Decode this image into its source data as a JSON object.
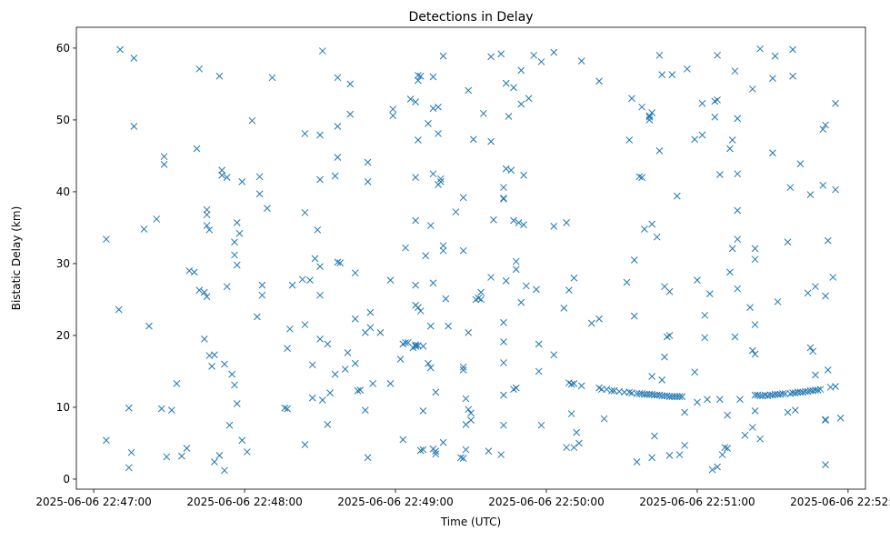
{
  "chart_data": {
    "type": "scatter",
    "title": "Detections in Delay",
    "xlabel": "Time (UTC)",
    "ylabel": "Bistatic Delay (km)",
    "marker": "x",
    "color": "#1f77b4",
    "x_unit": "seconds since 2025-06-06 22:47:00",
    "xlim": [
      -6.9,
      306.9
    ],
    "ylim": [
      -1.4,
      62.9
    ],
    "x_ticks": [
      {
        "value": 0,
        "label": "2025-06-06 22:47:00"
      },
      {
        "value": 60,
        "label": "2025-06-06 22:48:00"
      },
      {
        "value": 120,
        "label": "2025-06-06 22:49:00"
      },
      {
        "value": 180,
        "label": "2025-06-06 22:50:00"
      },
      {
        "value": 240,
        "label": "2025-06-06 22:51:00"
      },
      {
        "value": 300,
        "label": "2025-06-06 22:52:00"
      }
    ],
    "y_ticks": [
      {
        "value": 0,
        "label": "0"
      },
      {
        "value": 10,
        "label": "10"
      },
      {
        "value": 20,
        "label": "20"
      },
      {
        "value": 30,
        "label": "30"
      },
      {
        "value": 40,
        "label": "40"
      },
      {
        "value": 50,
        "label": "50"
      },
      {
        "value": 60,
        "label": "60"
      }
    ],
    "points": [
      [
        5,
        33.4
      ],
      [
        5,
        5.4
      ],
      [
        10,
        23.6
      ],
      [
        10.5,
        59.8
      ],
      [
        14,
        9.9
      ],
      [
        14,
        1.6
      ],
      [
        15,
        3.7
      ],
      [
        16,
        58.6
      ],
      [
        16,
        49.1
      ],
      [
        20,
        34.8
      ],
      [
        22,
        21.3
      ],
      [
        25,
        36.2
      ],
      [
        27,
        9.8
      ],
      [
        28,
        44.9
      ],
      [
        28,
        43.8
      ],
      [
        29,
        3.1
      ],
      [
        31,
        9.6
      ],
      [
        33,
        13.3
      ],
      [
        35,
        3.2
      ],
      [
        37,
        4.3
      ],
      [
        38,
        29.0
      ],
      [
        40,
        28.8
      ],
      [
        41,
        46.0
      ],
      [
        42,
        57.1
      ],
      [
        42,
        26.3
      ],
      [
        44,
        19.5
      ],
      [
        44,
        26.0
      ],
      [
        45,
        35.3
      ],
      [
        45,
        36.8
      ],
      [
        45,
        37.5
      ],
      [
        45,
        25.4
      ],
      [
        46,
        17.2
      ],
      [
        46,
        34.7
      ],
      [
        47,
        15.7
      ],
      [
        48,
        17.3
      ],
      [
        48,
        2.4
      ],
      [
        50,
        56.1
      ],
      [
        50,
        3.3
      ],
      [
        51,
        43.0
      ],
      [
        51,
        42.3
      ],
      [
        52,
        16.0
      ],
      [
        52,
        1.2
      ],
      [
        53,
        26.8
      ],
      [
        53,
        42.0
      ],
      [
        54,
        7.5
      ],
      [
        55,
        14.6
      ],
      [
        56,
        33.0
      ],
      [
        56,
        31.2
      ],
      [
        56,
        13.1
      ],
      [
        57,
        29.8
      ],
      [
        57,
        35.7
      ],
      [
        57,
        10.5
      ],
      [
        58,
        34.2
      ],
      [
        59,
        41.4
      ],
      [
        59,
        5.4
      ],
      [
        61,
        3.8
      ],
      [
        63,
        49.9
      ],
      [
        65,
        22.6
      ],
      [
        66,
        42.1
      ],
      [
        66,
        39.7
      ],
      [
        67,
        27.0
      ],
      [
        67,
        25.6
      ],
      [
        69,
        37.7
      ],
      [
        71,
        55.9
      ],
      [
        76,
        9.9
      ],
      [
        77,
        9.8
      ],
      [
        77,
        18.2
      ],
      [
        78,
        20.9
      ],
      [
        79,
        27.0
      ],
      [
        83,
        27.8
      ],
      [
        84,
        48.1
      ],
      [
        84,
        37.1
      ],
      [
        84,
        21.5
      ],
      [
        84,
        4.8
      ],
      [
        86,
        27.7
      ],
      [
        87,
        15.9
      ],
      [
        87,
        11.3
      ],
      [
        88,
        30.7
      ],
      [
        89,
        34.7
      ],
      [
        90,
        47.9
      ],
      [
        90,
        41.7
      ],
      [
        90,
        29.6
      ],
      [
        90,
        25.6
      ],
      [
        90,
        19.5
      ],
      [
        91,
        11.0
      ],
      [
        91,
        59.6
      ],
      [
        93,
        7.6
      ],
      [
        93,
        18.8
      ],
      [
        94,
        12.0
      ],
      [
        96,
        42.2
      ],
      [
        96,
        14.6
      ],
      [
        97,
        55.9
      ],
      [
        97,
        44.8
      ],
      [
        97,
        49.1
      ],
      [
        97,
        30.2
      ],
      [
        98,
        30.1
      ],
      [
        100,
        15.3
      ],
      [
        101,
        17.6
      ],
      [
        102,
        55.0
      ],
      [
        102,
        50.8
      ],
      [
        104,
        28.7
      ],
      [
        104,
        22.3
      ],
      [
        104,
        16.1
      ],
      [
        105,
        12.3
      ],
      [
        106,
        12.4
      ],
      [
        108,
        9.6
      ],
      [
        108,
        20.4
      ],
      [
        109,
        44.1
      ],
      [
        109,
        41.4
      ],
      [
        109,
        3.0
      ],
      [
        110,
        23.2
      ],
      [
        110,
        21.1
      ],
      [
        111,
        13.3
      ],
      [
        114,
        20.4
      ],
      [
        118,
        27.7
      ],
      [
        118,
        13.3
      ],
      [
        119,
        51.5
      ],
      [
        119,
        50.6
      ],
      [
        122,
        16.7
      ],
      [
        123,
        18.8
      ],
      [
        123,
        5.5
      ],
      [
        124,
        32.2
      ],
      [
        124,
        19.0
      ],
      [
        125,
        19.0
      ],
      [
        126,
        52.9
      ],
      [
        127,
        18.3
      ],
      [
        128,
        18.7
      ],
      [
        128,
        52.5
      ],
      [
        128,
        42.0
      ],
      [
        128,
        36.0
      ],
      [
        128,
        27.0
      ],
      [
        128,
        24.2
      ],
      [
        128,
        18.5
      ],
      [
        128,
        18.5
      ],
      [
        129,
        56.2
      ],
      [
        129,
        55.5
      ],
      [
        129,
        18.6
      ],
      [
        129,
        23.9
      ],
      [
        129,
        47.2
      ],
      [
        130,
        56.1
      ],
      [
        130,
        23.4
      ],
      [
        130,
        4.0
      ],
      [
        131,
        18.5
      ],
      [
        131,
        4.1
      ],
      [
        131,
        9.5
      ],
      [
        132,
        31.1
      ],
      [
        133,
        49.5
      ],
      [
        133,
        16.1
      ],
      [
        134,
        15.5
      ],
      [
        134,
        35.3
      ],
      [
        134,
        21.3
      ],
      [
        135,
        42.5
      ],
      [
        135,
        27.3
      ],
      [
        135,
        51.6
      ],
      [
        135,
        56.0
      ],
      [
        135,
        4.2
      ],
      [
        136,
        12.1
      ],
      [
        136,
        3.9
      ],
      [
        136,
        3.5
      ],
      [
        137,
        48.1
      ],
      [
        137,
        41.0
      ],
      [
        137,
        51.8
      ],
      [
        138,
        41.8
      ],
      [
        138,
        41.4
      ],
      [
        139,
        32.5
      ],
      [
        139,
        31.8
      ],
      [
        139,
        5.1
      ],
      [
        139,
        58.9
      ],
      [
        140,
        25.1
      ],
      [
        141,
        21.3
      ],
      [
        144,
        37.2
      ],
      [
        146,
        3.0
      ],
      [
        147,
        15.6
      ],
      [
        147,
        15.2
      ],
      [
        147,
        2.9
      ],
      [
        147,
        39.2
      ],
      [
        147,
        31.8
      ],
      [
        148,
        11.2
      ],
      [
        148,
        7.6
      ],
      [
        148,
        4.1
      ],
      [
        149,
        54.1
      ],
      [
        149,
        20.4
      ],
      [
        149,
        9.7
      ],
      [
        150,
        8.2
      ],
      [
        150,
        9.2
      ],
      [
        151,
        47.3
      ],
      [
        152,
        25.0
      ],
      [
        153,
        25.2
      ],
      [
        154,
        25.0
      ],
      [
        154,
        26.0
      ],
      [
        155,
        50.9
      ],
      [
        157,
        3.9
      ],
      [
        158,
        47.0
      ],
      [
        158,
        58.8
      ],
      [
        158,
        28.1
      ],
      [
        159,
        36.1
      ],
      [
        162,
        3.4
      ],
      [
        162,
        59.2
      ],
      [
        163,
        39.0
      ],
      [
        163,
        40.6
      ],
      [
        163,
        39.1
      ],
      [
        163,
        19.1
      ],
      [
        163,
        11.7
      ],
      [
        163,
        7.5
      ],
      [
        163,
        21.8
      ],
      [
        163,
        16.2
      ],
      [
        164,
        43.2
      ],
      [
        164,
        27.6
      ],
      [
        164,
        55.1
      ],
      [
        165,
        50.5
      ],
      [
        166,
        43.0
      ],
      [
        167,
        54.5
      ],
      [
        167,
        36.0
      ],
      [
        167,
        12.5
      ],
      [
        168,
        12.7
      ],
      [
        168,
        30.3
      ],
      [
        168,
        29.2
      ],
      [
        169,
        35.7
      ],
      [
        170,
        24.6
      ],
      [
        170,
        52.2
      ],
      [
        170,
        56.9
      ],
      [
        171,
        42.3
      ],
      [
        171,
        35.4
      ],
      [
        172,
        26.9
      ],
      [
        173,
        53.0
      ],
      [
        175,
        59.0
      ],
      [
        176,
        26.4
      ],
      [
        177,
        18.8
      ],
      [
        177,
        15.0
      ],
      [
        178,
        58.1
      ],
      [
        178,
        7.5
      ],
      [
        183,
        59.4
      ],
      [
        183,
        35.2
      ],
      [
        183,
        17.3
      ],
      [
        187,
        23.8
      ],
      [
        188,
        35.7
      ],
      [
        188,
        4.4
      ],
      [
        189,
        13.4
      ],
      [
        189,
        26.3
      ],
      [
        190,
        13.2
      ],
      [
        190,
        9.1
      ],
      [
        191,
        28.0
      ],
      [
        191,
        13.3
      ],
      [
        191,
        4.4
      ],
      [
        192,
        6.5
      ],
      [
        193,
        5.0
      ],
      [
        194,
        58.2
      ],
      [
        194,
        13.0
      ],
      [
        198,
        21.7
      ],
      [
        201,
        55.4
      ],
      [
        201,
        22.3
      ],
      [
        201,
        12.7
      ],
      [
        202,
        12.5
      ],
      [
        203,
        8.4
      ],
      [
        204,
        12.5
      ],
      [
        206,
        12.3
      ],
      [
        207,
        12.3
      ],
      [
        209,
        12.2
      ],
      [
        211,
        12.1
      ],
      [
        212,
        27.4
      ],
      [
        213,
        47.2
      ],
      [
        213,
        12.1
      ],
      [
        214,
        12.0
      ],
      [
        214,
        53.0
      ],
      [
        215,
        30.5
      ],
      [
        215,
        22.7
      ],
      [
        216,
        11.9
      ],
      [
        216,
        2.4
      ],
      [
        217,
        42.1
      ],
      [
        217,
        11.9
      ],
      [
        218,
        51.8
      ],
      [
        218,
        42.0
      ],
      [
        218,
        11.9
      ],
      [
        219,
        34.8
      ],
      [
        219,
        11.8
      ],
      [
        220,
        11.8
      ],
      [
        221,
        50.0
      ],
      [
        221,
        11.8
      ],
      [
        221,
        50.4
      ],
      [
        221,
        50.6
      ],
      [
        222,
        14.3
      ],
      [
        222,
        11.8
      ],
      [
        222,
        51.0
      ],
      [
        222,
        35.5
      ],
      [
        222,
        3.0
      ],
      [
        223,
        6.0
      ],
      [
        223,
        11.7
      ],
      [
        224,
        33.7
      ],
      [
        224,
        11.7
      ],
      [
        225,
        59.0
      ],
      [
        225,
        45.7
      ],
      [
        225,
        11.7
      ],
      [
        226,
        56.3
      ],
      [
        226,
        11.6
      ],
      [
        226,
        13.8
      ],
      [
        227,
        26.8
      ],
      [
        227,
        11.6
      ],
      [
        227,
        17.0
      ],
      [
        228,
        19.8
      ],
      [
        228,
        11.6
      ],
      [
        229,
        20.0
      ],
      [
        229,
        26.1
      ],
      [
        229,
        11.5
      ],
      [
        229,
        3.3
      ],
      [
        230,
        56.3
      ],
      [
        230,
        11.5
      ],
      [
        231,
        11.5
      ],
      [
        232,
        39.4
      ],
      [
        232,
        11.5
      ],
      [
        233,
        11.5
      ],
      [
        233,
        3.4
      ],
      [
        234,
        11.5
      ],
      [
        235,
        4.7
      ],
      [
        235,
        9.3
      ],
      [
        236,
        57.1
      ],
      [
        239,
        47.3
      ],
      [
        239,
        14.9
      ],
      [
        240,
        27.7
      ],
      [
        240,
        10.7
      ],
      [
        242,
        47.9
      ],
      [
        242,
        52.3
      ],
      [
        243,
        19.7
      ],
      [
        243,
        22.8
      ],
      [
        244,
        11.1
      ],
      [
        245,
        25.8
      ],
      [
        246,
        1.3
      ],
      [
        247,
        50.4
      ],
      [
        247,
        52.6
      ],
      [
        248,
        52.8
      ],
      [
        248,
        59.0
      ],
      [
        248,
        1.7
      ],
      [
        249,
        42.4
      ],
      [
        249,
        11.1
      ],
      [
        250,
        3.4
      ],
      [
        251,
        4.4
      ],
      [
        252,
        8.9
      ],
      [
        252,
        4.3
      ],
      [
        253,
        46.0
      ],
      [
        253,
        28.8
      ],
      [
        254,
        47.2
      ],
      [
        254,
        32.1
      ],
      [
        255,
        56.8
      ],
      [
        255,
        19.8
      ],
      [
        256,
        42.5
      ],
      [
        256,
        37.4
      ],
      [
        256,
        50.2
      ],
      [
        256,
        26.5
      ],
      [
        256,
        33.4
      ],
      [
        257,
        11.1
      ],
      [
        259,
        6.1
      ],
      [
        261,
        23.9
      ],
      [
        262,
        54.3
      ],
      [
        262,
        17.9
      ],
      [
        262,
        7.2
      ],
      [
        263,
        11.7
      ],
      [
        263,
        9.5
      ],
      [
        263,
        17.4
      ],
      [
        263,
        21.5
      ],
      [
        263,
        30.6
      ],
      [
        263,
        32.1
      ],
      [
        264,
        11.7
      ],
      [
        265,
        59.9
      ],
      [
        265,
        11.6
      ],
      [
        265,
        5.6
      ],
      [
        266,
        11.6
      ],
      [
        267,
        11.7
      ],
      [
        268,
        11.6
      ],
      [
        269,
        11.7
      ],
      [
        270,
        11.7
      ],
      [
        270,
        45.4
      ],
      [
        270,
        55.8
      ],
      [
        271,
        11.8
      ],
      [
        271,
        58.9
      ],
      [
        272,
        11.8
      ],
      [
        272,
        24.7
      ],
      [
        273,
        11.8
      ],
      [
        274,
        11.9
      ],
      [
        275,
        11.9
      ],
      [
        276,
        33.0
      ],
      [
        276,
        9.3
      ],
      [
        277,
        11.9
      ],
      [
        277,
        40.6
      ],
      [
        278,
        59.8
      ],
      [
        278,
        56.1
      ],
      [
        278,
        12.0
      ],
      [
        279,
        9.6
      ],
      [
        279,
        12.0
      ],
      [
        280,
        12.1
      ],
      [
        281,
        12.1
      ],
      [
        281,
        43.9
      ],
      [
        282,
        12.1
      ],
      [
        283,
        12.2
      ],
      [
        284,
        25.9
      ],
      [
        284,
        12.2
      ],
      [
        285,
        39.6
      ],
      [
        285,
        12.3
      ],
      [
        285,
        18.3
      ],
      [
        286,
        12.3
      ],
      [
        286,
        17.8
      ],
      [
        287,
        12.4
      ],
      [
        287,
        14.5
      ],
      [
        287,
        26.8
      ],
      [
        288,
        12.4
      ],
      [
        289,
        12.5
      ],
      [
        290,
        48.7
      ],
      [
        290,
        40.9
      ],
      [
        291,
        49.3
      ],
      [
        291,
        8.3
      ],
      [
        291,
        8.2
      ],
      [
        291,
        2.0
      ],
      [
        291,
        25.5
      ],
      [
        292,
        33.2
      ],
      [
        292,
        15.2
      ],
      [
        293,
        12.8
      ],
      [
        294,
        28.1
      ],
      [
        295,
        52.3
      ],
      [
        295,
        40.3
      ],
      [
        295,
        12.9
      ],
      [
        297,
        8.5
      ]
    ]
  }
}
